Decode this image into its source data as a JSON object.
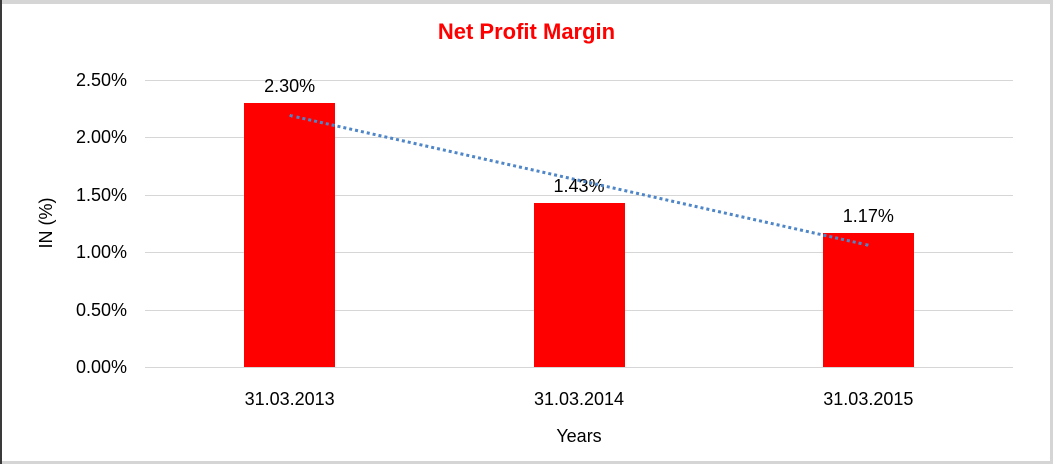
{
  "chart_data": {
    "type": "bar",
    "title": "Net Profit Margin",
    "categories": [
      "31.03.2013",
      "31.03.2014",
      "31.03.2015"
    ],
    "values": [
      2.3,
      1.43,
      1.17
    ],
    "data_labels": [
      "2.30%",
      "1.43%",
      "1.17%"
    ],
    "xlabel": "Years",
    "ylabel": "IN (%)",
    "ylim": [
      0,
      2.5
    ],
    "ytick_step": 0.5,
    "ytick_labels": [
      "0.00%",
      "0.50%",
      "1.00%",
      "1.50%",
      "2.00%",
      "2.50%"
    ],
    "grid": true,
    "legend": "none",
    "trendline": {
      "type": "linear",
      "style": "dotted"
    },
    "colors": {
      "bar": "#ff0000",
      "title": "#ff0000",
      "trendline": "#4e86c8",
      "gridline": "#d6d6d6",
      "text": "#000000",
      "frame_light": "#d5d5d5",
      "frame_dark": "#3a3a3a"
    }
  }
}
